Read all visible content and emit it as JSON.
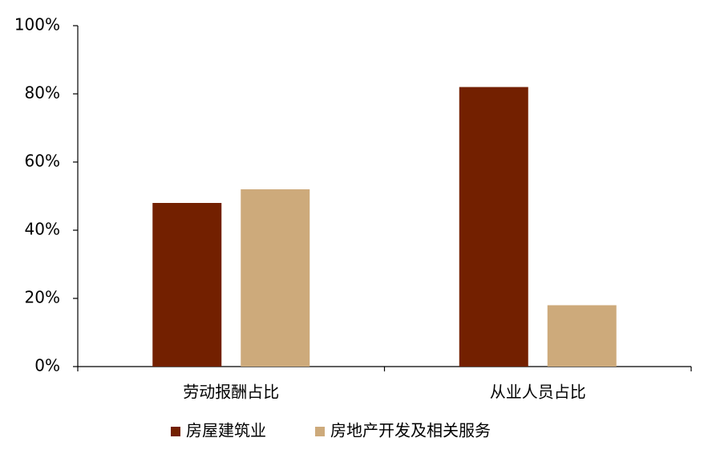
{
  "chart_data": {
    "type": "bar",
    "categories": [
      "劳动报酬占比",
      "从业人员占比"
    ],
    "series": [
      {
        "name": "房屋建筑业",
        "color": "#732000",
        "values": [
          48,
          82
        ]
      },
      {
        "name": "房地产开发及相关服务",
        "color": "#cdaa7b",
        "values": [
          52,
          18
        ]
      }
    ],
    "ylim": [
      0,
      100
    ],
    "yticks": [
      {
        "value": 0,
        "label": "0%"
      },
      {
        "value": 20,
        "label": "20%"
      },
      {
        "value": 40,
        "label": "40%"
      },
      {
        "value": 60,
        "label": "60%"
      },
      {
        "value": 80,
        "label": "80%"
      },
      {
        "value": 100,
        "label": "100%"
      }
    ],
    "grid": false,
    "legend": "bottom"
  }
}
